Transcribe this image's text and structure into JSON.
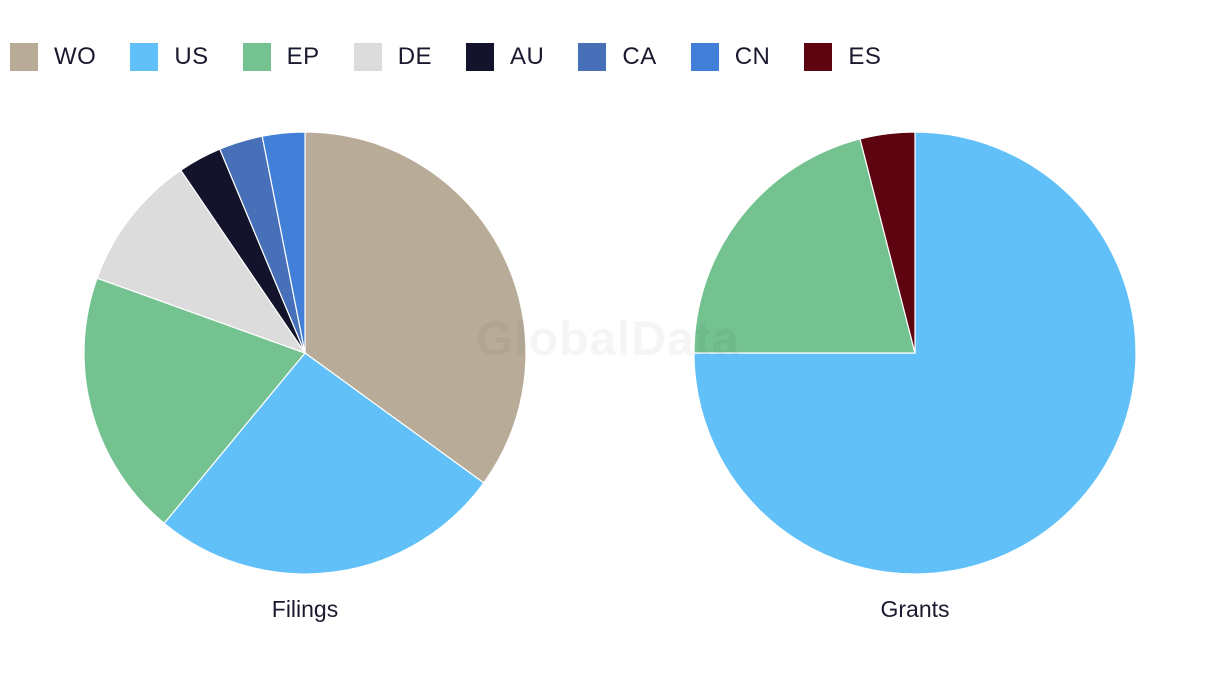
{
  "legend": [
    {
      "label": "WO",
      "color": "#b8ab98"
    },
    {
      "label": "US",
      "color": "#62c0f8"
    },
    {
      "label": "EP",
      "color": "#73c290"
    },
    {
      "label": "DE",
      "color": "#dcdcdc"
    },
    {
      "label": "AU",
      "color": "#13142b"
    },
    {
      "label": "CA",
      "color": "#4770b8"
    },
    {
      "label": "CN",
      "color": "#417fd9"
    },
    {
      "label": "ES",
      "color": "#5e0410"
    }
  ],
  "watermark": "GlobalData",
  "chart_data": [
    {
      "type": "pie",
      "title": "Filings",
      "slices": [
        {
          "label": "WO",
          "value": 35.0,
          "color": "#b8ab98"
        },
        {
          "label": "US",
          "value": 26.0,
          "color": "#62c0f8"
        },
        {
          "label": "EP",
          "value": 19.5,
          "color": "#73c290"
        },
        {
          "label": "DE",
          "value": 10.0,
          "color": "#dcdcdc"
        },
        {
          "label": "AU",
          "value": 3.2,
          "color": "#13142b"
        },
        {
          "label": "CA",
          "value": 3.2,
          "color": "#4770b8"
        },
        {
          "label": "CN",
          "value": 3.1,
          "color": "#417fd9"
        }
      ]
    },
    {
      "type": "pie",
      "title": "Grants",
      "slices": [
        {
          "label": "US",
          "value": 75.0,
          "color": "#62c0f8"
        },
        {
          "label": "EP",
          "value": 21.0,
          "color": "#73c290"
        },
        {
          "label": "ES",
          "value": 4.0,
          "color": "#5e0410"
        }
      ]
    }
  ]
}
